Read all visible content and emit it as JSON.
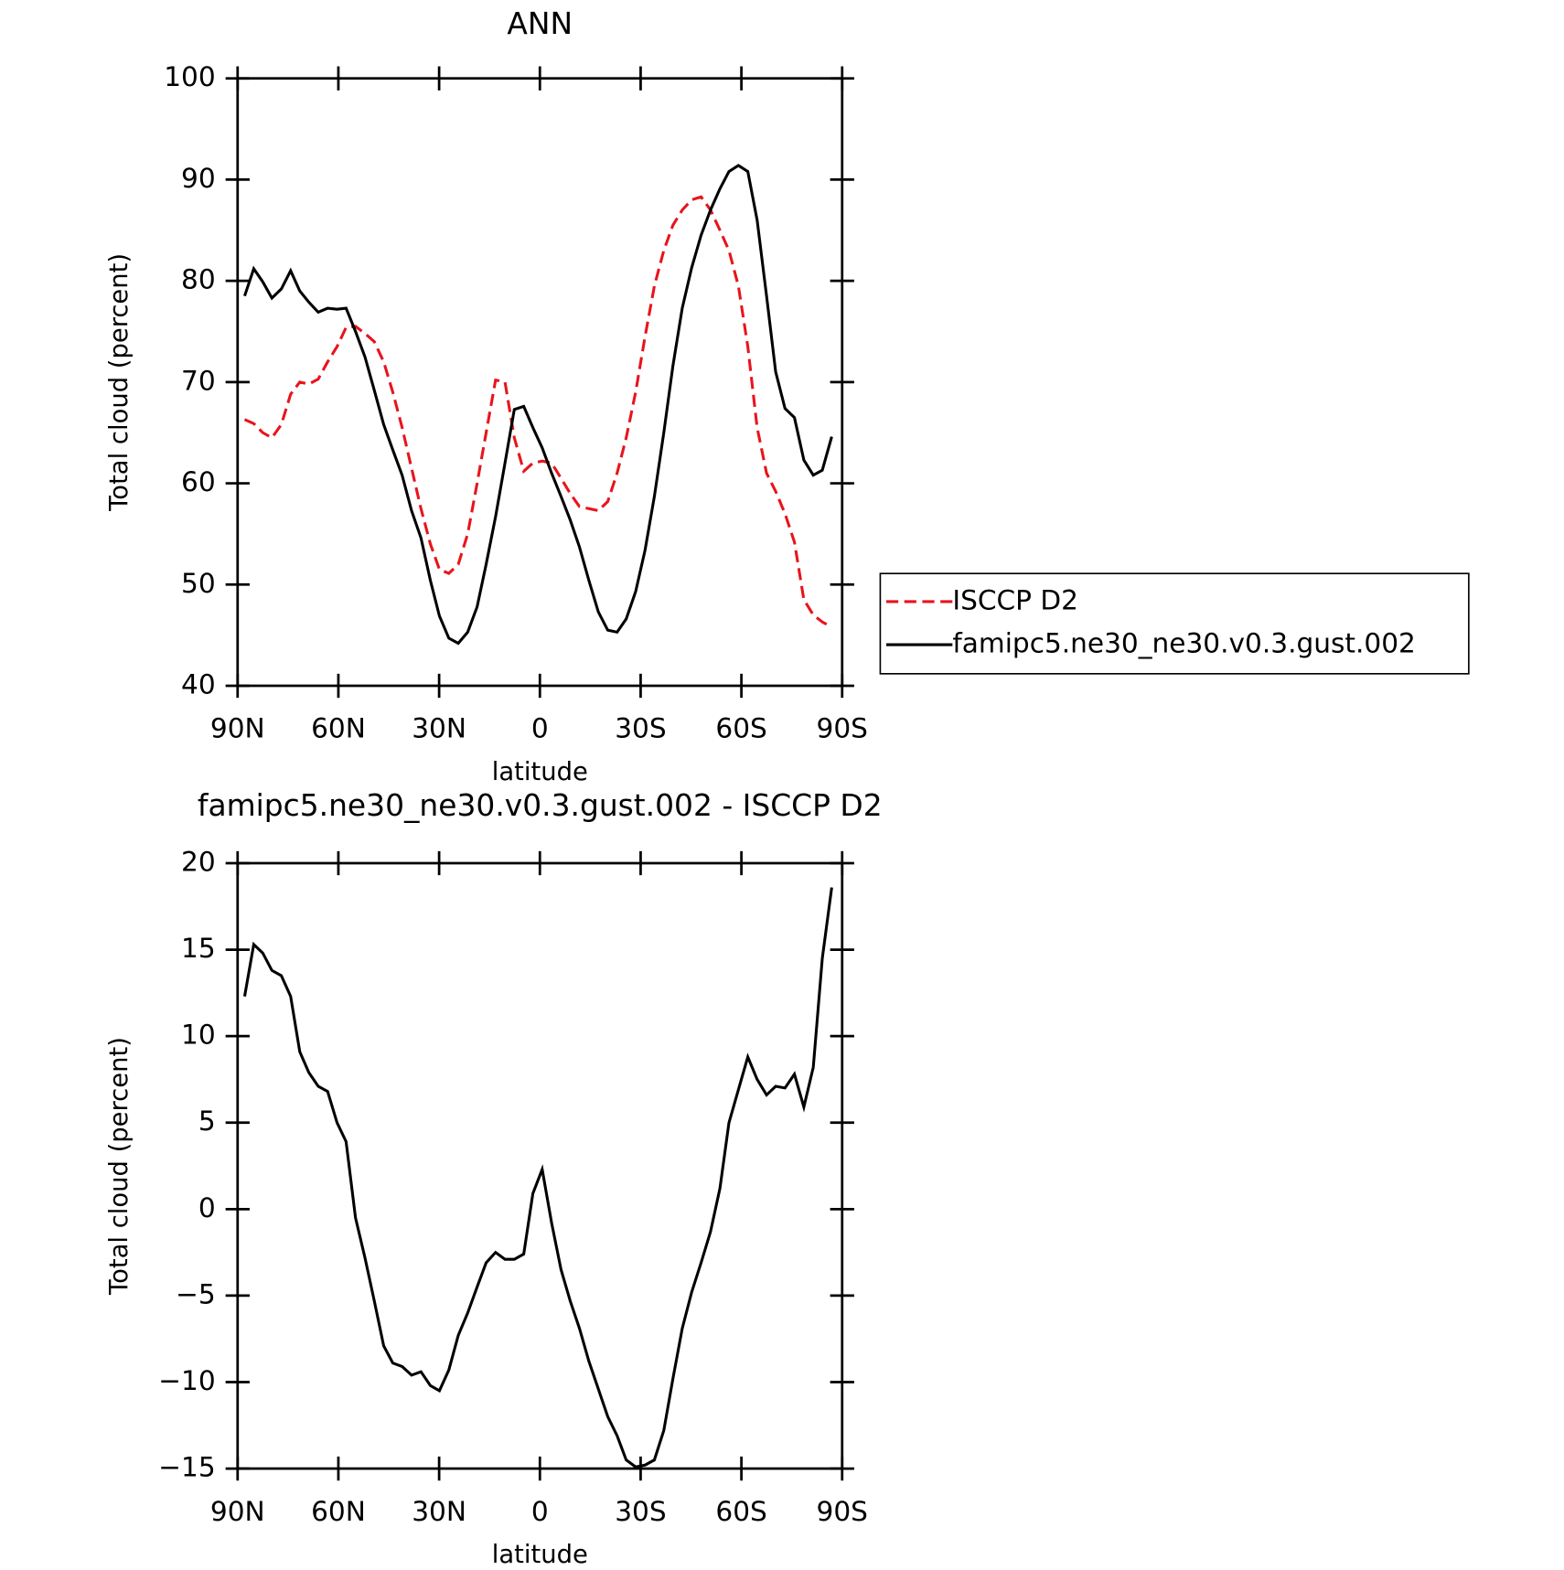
{
  "chart_data": [
    {
      "type": "line",
      "title": "ANN",
      "xlabel": "latitude",
      "ylabel": "Total cloud (percent)",
      "x": [
        87.9,
        85.2,
        82.5,
        79.8,
        77.0,
        74.2,
        71.5,
        68.8,
        66.0,
        63.2,
        60.4,
        57.7,
        54.9,
        52.1,
        49.3,
        46.5,
        43.8,
        41.0,
        38.2,
        35.4,
        32.6,
        29.9,
        27.1,
        24.3,
        21.5,
        18.7,
        16.0,
        13.2,
        10.4,
        7.6,
        4.8,
        2.1,
        -0.7,
        -3.5,
        -6.3,
        -9.0,
        -11.8,
        -14.6,
        -17.4,
        -20.2,
        -23.0,
        -25.7,
        -28.5,
        -31.3,
        -34.1,
        -36.9,
        -39.6,
        -42.4,
        -45.2,
        -48.0,
        -50.8,
        -53.6,
        -56.3,
        -59.1,
        -61.9,
        -64.7,
        -67.5,
        -70.2,
        -73.0,
        -75.8,
        -78.6,
        -81.4,
        -84.1,
        -86.9
      ],
      "series": [
        {
          "name": "ISCCP D2",
          "color": "#e8141c",
          "line_style": "dashed",
          "values": [
            66.3,
            65.9,
            65.0,
            64.5,
            65.8,
            68.8,
            70.0,
            69.8,
            70.3,
            72.0,
            73.5,
            75.4,
            75.5,
            74.8,
            74.0,
            72.0,
            69.0,
            65.5,
            61.5,
            57.5,
            54.0,
            51.5,
            51.1,
            52.0,
            55.0,
            60.0,
            65.0,
            70.2,
            70.0,
            64.5,
            61.2,
            62.0,
            62.2,
            62.0,
            60.5,
            59.0,
            57.7,
            57.5,
            57.3,
            58.2,
            61.0,
            64.5,
            69.0,
            74.5,
            79.5,
            83.0,
            85.5,
            87.0,
            88.0,
            88.3,
            87.0,
            85.0,
            83.0,
            79.5,
            73.5,
            65.5,
            61.0,
            59.2,
            57.0,
            54.2,
            48.5,
            47.0,
            46.3,
            45.8
          ]
        },
        {
          "name": "famipc5.ne30_ne30.v0.3.gust.002",
          "color": "#000000",
          "line_style": "solid",
          "values": [
            78.5,
            81.2,
            79.9,
            78.3,
            79.2,
            81.0,
            79.0,
            77.9,
            76.9,
            77.3,
            77.2,
            77.3,
            75.0,
            72.5,
            69.2,
            65.8,
            63.3,
            60.8,
            57.3,
            54.6,
            50.4,
            46.9,
            44.7,
            44.2,
            45.3,
            47.8,
            52.0,
            56.7,
            62.0,
            67.3,
            67.6,
            65.5,
            63.5,
            61.0,
            58.7,
            56.4,
            53.7,
            50.4,
            47.3,
            45.5,
            45.3,
            46.6,
            49.3,
            53.4,
            58.7,
            65.0,
            71.6,
            77.3,
            81.3,
            84.5,
            87.0,
            89.1,
            90.8,
            91.4,
            90.8,
            86.0,
            78.5,
            71.0,
            67.4,
            66.5,
            62.3,
            60.8,
            61.3,
            64.6
          ]
        }
      ],
      "xlim": [
        90,
        -90
      ],
      "xticks": [
        {
          "value": 90,
          "label": "90N"
        },
        {
          "value": 60,
          "label": "60N"
        },
        {
          "value": 30,
          "label": "30N"
        },
        0,
        {
          "value": -30,
          "label": "30S"
        },
        {
          "value": -60,
          "label": "60S"
        },
        {
          "value": -90,
          "label": "90S"
        }
      ],
      "ylim": [
        40,
        100
      ],
      "yticks": [
        40,
        50,
        60,
        70,
        80,
        90,
        100
      ],
      "legend": "right"
    },
    {
      "type": "line",
      "title": "famipc5.ne30_ne30.v0.3.gust.002 - ISCCP D2",
      "xlabel": "latitude",
      "ylabel": "Total cloud (percent)",
      "x": [
        87.9,
        85.2,
        82.5,
        79.8,
        77.0,
        74.2,
        71.5,
        68.8,
        66.0,
        63.2,
        60.4,
        57.7,
        54.9,
        52.1,
        49.3,
        46.5,
        43.8,
        41.0,
        38.2,
        35.4,
        32.6,
        29.9,
        27.1,
        24.3,
        21.5,
        18.7,
        16.0,
        13.2,
        10.4,
        7.6,
        4.8,
        2.1,
        -0.7,
        -3.5,
        -6.3,
        -9.0,
        -11.8,
        -14.6,
        -17.4,
        -20.2,
        -23.0,
        -25.7,
        -28.5,
        -31.3,
        -34.1,
        -36.9,
        -39.6,
        -42.4,
        -45.2,
        -48.0,
        -50.8,
        -53.6,
        -56.3,
        -59.1,
        -61.9,
        -64.7,
        -67.5,
        -70.2,
        -73.0,
        -75.8,
        -78.6,
        -81.4,
        -84.1,
        -86.9
      ],
      "series": [
        {
          "color": "#000000",
          "line_style": "solid",
          "values": [
            12.3,
            15.3,
            14.8,
            13.8,
            13.5,
            12.3,
            9.1,
            7.9,
            7.1,
            6.8,
            5.0,
            3.9,
            -0.5,
            -2.8,
            -5.3,
            -7.9,
            -8.9,
            -9.1,
            -9.6,
            -9.4,
            -10.2,
            -10.5,
            -9.3,
            -7.3,
            -6.0,
            -4.5,
            -3.1,
            -2.5,
            -2.9,
            -2.9,
            -2.6,
            0.9,
            2.3,
            -0.8,
            -3.5,
            -5.3,
            -6.9,
            -8.8,
            -10.4,
            -12.0,
            -13.1,
            -14.5,
            -14.9,
            -14.8,
            -14.5,
            -12.8,
            -9.8,
            -6.9,
            -4.8,
            -3.1,
            -1.3,
            1.2,
            5.0,
            6.9,
            8.8,
            7.5,
            6.6,
            7.1,
            7.0,
            7.8,
            5.9,
            8.2,
            14.5,
            18.6
          ]
        }
      ],
      "xlim": [
        90,
        -90
      ],
      "xticks": [
        {
          "value": 90,
          "label": "90N"
        },
        {
          "value": 60,
          "label": "60N"
        },
        {
          "value": 30,
          "label": "30N"
        },
        0,
        {
          "value": -30,
          "label": "30S"
        },
        {
          "value": -60,
          "label": "60S"
        },
        {
          "value": -90,
          "label": "90S"
        }
      ],
      "ylim": [
        -15,
        20
      ],
      "yticks": [
        {
          "value": -15,
          "label": "−15"
        },
        {
          "value": -10,
          "label": "−10"
        },
        {
          "value": -5,
          "label": "−5"
        },
        0,
        5,
        10,
        15,
        20
      ]
    }
  ]
}
